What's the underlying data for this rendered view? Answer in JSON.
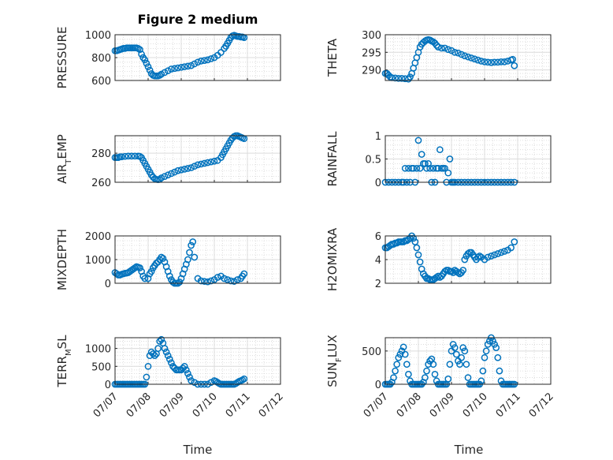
{
  "figure": {
    "title": "Figure 2 medium",
    "marker_color": "#0072BD",
    "grid": true,
    "minor_grid": true
  },
  "chart_data": [
    {
      "type": "scatter",
      "name": "pressure",
      "ylabel": "PRESSURE",
      "ylim": [
        600,
        1000
      ],
      "yticks": [
        "600",
        "800",
        "1000"
      ],
      "xlim": [
        "07/07",
        "07/12"
      ],
      "x_values": [
        7.0,
        7.05,
        7.1,
        7.15,
        7.2,
        7.25,
        7.3,
        7.35,
        7.4,
        7.45,
        7.5,
        7.55,
        7.6,
        7.65,
        7.7,
        7.75,
        7.8,
        7.85,
        7.9,
        7.95,
        8.0,
        8.05,
        8.1,
        8.15,
        8.2,
        8.25,
        8.3,
        8.35,
        8.4,
        8.5,
        8.6,
        8.7,
        8.8,
        8.9,
        9.0,
        9.1,
        9.2,
        9.3,
        9.4,
        9.5,
        9.6,
        9.7,
        9.8,
        9.9,
        10.0,
        10.1,
        10.2,
        10.3,
        10.35,
        10.4,
        10.45,
        10.5,
        10.55,
        10.6,
        10.65,
        10.7,
        10.75,
        10.8,
        10.85,
        10.9
      ],
      "y_values": [
        860,
        860,
        865,
        870,
        875,
        880,
        880,
        885,
        885,
        885,
        885,
        885,
        885,
        885,
        880,
        870,
        830,
        800,
        780,
        750,
        720,
        690,
        660,
        645,
        640,
        640,
        640,
        645,
        655,
        670,
        685,
        700,
        705,
        710,
        715,
        720,
        725,
        730,
        745,
        760,
        770,
        775,
        780,
        790,
        800,
        820,
        845,
        880,
        900,
        925,
        950,
        975,
        990,
        995,
        990,
        985,
        985,
        980,
        980,
        975
      ]
    },
    {
      "type": "scatter",
      "name": "theta",
      "ylabel": "THETA",
      "ylim": [
        287,
        300
      ],
      "yticks": [
        "290",
        "295",
        "300"
      ],
      "xlim": [
        "07/07",
        "07/12"
      ],
      "x_values": [
        7.0,
        7.05,
        7.1,
        7.15,
        7.2,
        7.3,
        7.4,
        7.5,
        7.6,
        7.7,
        7.75,
        7.8,
        7.85,
        7.9,
        7.95,
        8.0,
        8.05,
        8.1,
        8.15,
        8.2,
        8.25,
        8.3,
        8.35,
        8.4,
        8.45,
        8.5,
        8.55,
        8.6,
        8.7,
        8.8,
        8.9,
        9.0,
        9.1,
        9.2,
        9.3,
        9.4,
        9.5,
        9.6,
        9.7,
        9.8,
        9.9,
        10.0,
        10.1,
        10.2,
        10.3,
        10.4,
        10.5,
        10.6,
        10.7,
        10.8,
        10.85,
        10.9
      ],
      "y_values": [
        289,
        289,
        288.5,
        288,
        287.8,
        287.7,
        287.6,
        287.6,
        287.5,
        287.4,
        288,
        289,
        290.5,
        292,
        293.5,
        295,
        296.5,
        297.3,
        297.8,
        298.2,
        298.5,
        298.6,
        298.5,
        298.2,
        298,
        297.6,
        297,
        296.5,
        296.2,
        296.2,
        295.8,
        295.5,
        295,
        294.8,
        294.4,
        294,
        293.7,
        293.4,
        293.1,
        292.8,
        292.5,
        292.3,
        292.2,
        292.1,
        292.2,
        292.2,
        292.3,
        292.3,
        292.5,
        292.8,
        293,
        291.2
      ]
    },
    {
      "type": "scatter",
      "name": "air_temp",
      "ylabel": "AIR_TEMP",
      "ylabel_main": "AIR",
      "ylabel_sub": "T",
      "ylabel_rest": "EMP",
      "ylim": [
        260,
        292
      ],
      "yticks": [
        "260",
        "280"
      ],
      "xlim": [
        "07/07",
        "07/12"
      ],
      "x_values": [
        7.0,
        7.05,
        7.1,
        7.15,
        7.2,
        7.3,
        7.4,
        7.5,
        7.6,
        7.7,
        7.75,
        7.8,
        7.85,
        7.9,
        7.95,
        8.0,
        8.05,
        8.1,
        8.15,
        8.2,
        8.25,
        8.3,
        8.35,
        8.4,
        8.5,
        8.6,
        8.7,
        8.8,
        8.9,
        9.0,
        9.1,
        9.2,
        9.3,
        9.4,
        9.5,
        9.6,
        9.7,
        9.8,
        9.9,
        10.0,
        10.1,
        10.2,
        10.25,
        10.3,
        10.35,
        10.4,
        10.45,
        10.5,
        10.55,
        10.6,
        10.65,
        10.7,
        10.75,
        10.8,
        10.85,
        10.9
      ],
      "y_values": [
        277,
        277,
        277,
        277.5,
        277.5,
        277.8,
        278,
        278,
        278,
        278,
        277.8,
        277,
        275,
        273,
        271,
        269,
        267,
        265,
        263.5,
        262.5,
        262,
        261.8,
        262,
        263,
        264,
        265,
        266,
        267,
        268,
        268.5,
        269,
        269.5,
        270,
        271,
        272,
        272.5,
        273,
        273.5,
        274,
        274.5,
        275,
        277,
        279,
        281,
        283,
        285,
        287,
        289,
        290.5,
        291.5,
        292,
        292,
        291.5,
        291,
        290.5,
        290
      ]
    },
    {
      "type": "scatter",
      "name": "rainfall",
      "ylabel": "RAINFALL",
      "ylim": [
        0,
        1
      ],
      "yticks": [
        "0",
        "0.5",
        "1"
      ],
      "xlim": [
        "07/07",
        "07/12"
      ],
      "x_values": [
        7.0,
        7.1,
        7.2,
        7.3,
        7.4,
        7.5,
        7.55,
        7.6,
        7.65,
        7.7,
        7.75,
        7.8,
        7.85,
        7.9,
        7.95,
        8.0,
        8.05,
        8.1,
        8.15,
        8.2,
        8.25,
        8.3,
        8.35,
        8.4,
        8.45,
        8.5,
        8.55,
        8.6,
        8.65,
        8.7,
        8.75,
        8.8,
        8.85,
        8.9,
        8.95,
        9.0,
        9.05,
        9.1,
        9.2,
        9.3,
        9.4,
        9.5,
        9.6,
        9.7,
        9.8,
        9.9,
        10.0,
        10.1,
        10.2,
        10.3,
        10.4,
        10.5,
        10.6,
        10.7,
        10.8,
        10.9
      ],
      "y_values": [
        0,
        0,
        0,
        0,
        0,
        0,
        0,
        0.3,
        0,
        0.3,
        0,
        0.3,
        0.3,
        0,
        0.3,
        0.9,
        0.3,
        0.6,
        0.4,
        0.4,
        0.3,
        0.4,
        0.3,
        0,
        0.3,
        0,
        0.3,
        0.3,
        0.7,
        0.3,
        0.3,
        0.3,
        0,
        0.2,
        0.5,
        0,
        0,
        0,
        0,
        0,
        0,
        0,
        0,
        0,
        0,
        0,
        0,
        0,
        0,
        0,
        0,
        0,
        0,
        0,
        0,
        0
      ]
    },
    {
      "type": "scatter",
      "name": "mixdepth",
      "ylabel": "MIXDEPTH",
      "ylim": [
        0,
        2000
      ],
      "yticks": [
        "0",
        "1000",
        "2000"
      ],
      "xlim": [
        "07/07",
        "07/12"
      ],
      "x_values": [
        7.0,
        7.05,
        7.1,
        7.15,
        7.2,
        7.25,
        7.3,
        7.35,
        7.4,
        7.45,
        7.5,
        7.55,
        7.6,
        7.65,
        7.7,
        7.75,
        7.8,
        7.85,
        7.9,
        8.0,
        8.05,
        8.1,
        8.15,
        8.2,
        8.25,
        8.3,
        8.35,
        8.4,
        8.45,
        8.5,
        8.55,
        8.6,
        8.65,
        8.7,
        8.75,
        8.8,
        8.85,
        8.9,
        8.95,
        9.0,
        9.05,
        9.1,
        9.15,
        9.2,
        9.25,
        9.3,
        9.35,
        9.4,
        9.5,
        9.6,
        9.7,
        9.8,
        9.9,
        10.0,
        10.1,
        10.2,
        10.3,
        10.4,
        10.5,
        10.6,
        10.7,
        10.8,
        10.85,
        10.9
      ],
      "y_values": [
        450,
        400,
        350,
        350,
        380,
        400,
        420,
        430,
        450,
        500,
        550,
        600,
        650,
        700,
        680,
        650,
        500,
        300,
        200,
        200,
        400,
        500,
        650,
        750,
        850,
        900,
        1000,
        1100,
        1050,
        900,
        700,
        500,
        300,
        150,
        50,
        0,
        0,
        0,
        50,
        200,
        400,
        600,
        800,
        1000,
        1300,
        1600,
        1750,
        1100,
        200,
        100,
        80,
        60,
        100,
        150,
        250,
        300,
        200,
        150,
        100,
        80,
        150,
        200,
        300,
        400
      ]
    },
    {
      "type": "scatter",
      "name": "h2omixra",
      "ylabel": "H2OMIXRA",
      "ylim": [
        2,
        6
      ],
      "yticks": [
        "2",
        "4",
        "6"
      ],
      "xlim": [
        "07/07",
        "07/12"
      ],
      "x_values": [
        7.0,
        7.05,
        7.1,
        7.15,
        7.2,
        7.25,
        7.3,
        7.35,
        7.4,
        7.45,
        7.5,
        7.55,
        7.6,
        7.65,
        7.7,
        7.75,
        7.8,
        7.85,
        7.9,
        7.95,
        8.0,
        8.05,
        8.1,
        8.15,
        8.2,
        8.25,
        8.3,
        8.35,
        8.4,
        8.45,
        8.5,
        8.55,
        8.6,
        8.65,
        8.7,
        8.75,
        8.8,
        8.85,
        8.9,
        8.95,
        9.0,
        9.05,
        9.1,
        9.15,
        9.2,
        9.25,
        9.3,
        9.35,
        9.4,
        9.45,
        9.5,
        9.55,
        9.6,
        9.65,
        9.7,
        9.75,
        9.8,
        9.85,
        9.9,
        10.0,
        10.1,
        10.2,
        10.3,
        10.4,
        10.5,
        10.6,
        10.7,
        10.8,
        10.9
      ],
      "y_values": [
        5,
        5,
        5.1,
        5.2,
        5.3,
        5.3,
        5.4,
        5.4,
        5.5,
        5.5,
        5.5,
        5.5,
        5.6,
        5.6,
        5.7,
        5.8,
        6.0,
        5.8,
        5.5,
        5.0,
        4.4,
        3.8,
        3.2,
        2.8,
        2.6,
        2.4,
        2.4,
        2.3,
        2.3,
        2.3,
        2.4,
        2.5,
        2.6,
        2.5,
        2.6,
        2.8,
        3.0,
        3.1,
        3.1,
        3.0,
        3.0,
        2.9,
        3.1,
        3.0,
        2.9,
        2.8,
        2.9,
        3.1,
        4.0,
        4.3,
        4.5,
        4.6,
        4.6,
        4.4,
        4.2,
        4.0,
        4.2,
        4.3,
        4.2,
        4.0,
        4.2,
        4.3,
        4.4,
        4.5,
        4.6,
        4.7,
        4.8,
        5.0,
        5.5
      ]
    },
    {
      "type": "scatter",
      "name": "terr_msl",
      "ylabel": "TERR_MSL",
      "ylabel_main": "TERR",
      "ylabel_sub": "M",
      "ylabel_rest": "SL",
      "ylim": [
        0,
        1300
      ],
      "yticks": [
        "0",
        "500",
        "1000"
      ],
      "xlim": [
        "07/07",
        "07/12"
      ],
      "x_values": [
        7.0,
        7.05,
        7.1,
        7.15,
        7.2,
        7.25,
        7.3,
        7.35,
        7.4,
        7.45,
        7.5,
        7.55,
        7.6,
        7.65,
        7.7,
        7.75,
        7.8,
        7.85,
        7.9,
        7.95,
        8.0,
        8.05,
        8.1,
        8.15,
        8.2,
        8.25,
        8.3,
        8.35,
        8.4,
        8.45,
        8.5,
        8.55,
        8.6,
        8.65,
        8.7,
        8.75,
        8.8,
        8.85,
        8.9,
        8.95,
        9.0,
        9.05,
        9.1,
        9.15,
        9.2,
        9.25,
        9.3,
        9.4,
        9.5,
        9.6,
        9.7,
        9.8,
        9.9,
        10.0,
        10.05,
        10.1,
        10.15,
        10.2,
        10.25,
        10.3,
        10.35,
        10.4,
        10.45,
        10.5,
        10.55,
        10.6,
        10.65,
        10.7,
        10.75,
        10.8,
        10.85,
        10.9
      ],
      "y_values": [
        0,
        0,
        0,
        0,
        0,
        0,
        0,
        0,
        0,
        0,
        0,
        0,
        0,
        0,
        0,
        0,
        0,
        0,
        0,
        200,
        500,
        800,
        900,
        850,
        800,
        850,
        1000,
        1200,
        1250,
        1150,
        1000,
        900,
        800,
        700,
        600,
        500,
        450,
        400,
        400,
        400,
        400,
        450,
        500,
        400,
        300,
        200,
        100,
        50,
        0,
        0,
        0,
        0,
        50,
        100,
        80,
        50,
        20,
        0,
        0,
        0,
        0,
        0,
        0,
        0,
        0,
        0,
        20,
        50,
        80,
        100,
        120,
        150
      ]
    },
    {
      "type": "scatter",
      "name": "sun_flux",
      "ylabel": "SUN_FLUX",
      "ylabel_main": "SUN",
      "ylabel_sub": "F",
      "ylabel_rest": "LUX",
      "ylim": [
        0,
        700
      ],
      "yticks": [
        "0",
        "500"
      ],
      "xlim": [
        "07/07",
        "07/12"
      ],
      "x_values": [
        7.0,
        7.05,
        7.1,
        7.15,
        7.2,
        7.25,
        7.3,
        7.35,
        7.4,
        7.45,
        7.5,
        7.55,
        7.6,
        7.65,
        7.7,
        7.75,
        7.8,
        7.85,
        7.9,
        7.95,
        8.0,
        8.05,
        8.1,
        8.15,
        8.2,
        8.25,
        8.3,
        8.35,
        8.4,
        8.45,
        8.5,
        8.55,
        8.6,
        8.65,
        8.7,
        8.75,
        8.8,
        8.85,
        8.9,
        8.95,
        9.0,
        9.05,
        9.1,
        9.15,
        9.2,
        9.25,
        9.3,
        9.35,
        9.4,
        9.45,
        9.5,
        9.55,
        9.6,
        9.65,
        9.7,
        9.75,
        9.8,
        9.85,
        9.9,
        9.95,
        10.0,
        10.05,
        10.1,
        10.15,
        10.2,
        10.25,
        10.3,
        10.35,
        10.4,
        10.45,
        10.5,
        10.55,
        10.6,
        10.65,
        10.7,
        10.75,
        10.8,
        10.85,
        10.9
      ],
      "y_values": [
        0,
        0,
        0,
        0,
        30,
        100,
        200,
        300,
        400,
        450,
        500,
        560,
        450,
        300,
        150,
        50,
        0,
        0,
        0,
        0,
        0,
        0,
        0,
        30,
        100,
        200,
        300,
        350,
        380,
        300,
        150,
        50,
        0,
        0,
        0,
        0,
        0,
        0,
        80,
        300,
        500,
        600,
        550,
        450,
        350,
        300,
        400,
        550,
        500,
        300,
        100,
        0,
        0,
        0,
        0,
        0,
        0,
        0,
        50,
        200,
        400,
        500,
        600,
        650,
        700,
        650,
        600,
        550,
        400,
        200,
        50,
        0,
        0,
        0,
        0,
        0,
        0,
        0,
        0
      ]
    }
  ],
  "x_axis": {
    "ticks": [
      "07/07",
      "07/08",
      "07/09",
      "07/10",
      "07/11",
      "07/12"
    ],
    "label": "Time"
  }
}
